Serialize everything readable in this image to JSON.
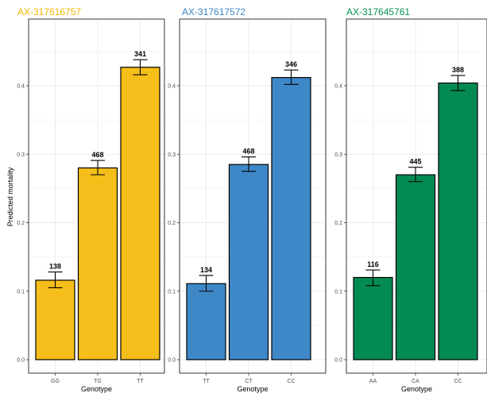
{
  "ylabel": "Predicted mortality",
  "chart_data": [
    {
      "type": "bar",
      "title": "AX-317616757",
      "title_color": "#f5b800",
      "bar_color": "#f5be1a",
      "xlabel": "Genotype",
      "ylabel": "Predicted mortality",
      "ylim": [
        0,
        0.48
      ],
      "yticks": [
        "0.0",
        "0.1",
        "0.2",
        "0.3",
        "0.4"
      ],
      "categories": [
        "GG",
        "TG",
        "TT"
      ],
      "values": [
        0.116,
        0.28,
        0.427
      ],
      "err_low": [
        0.105,
        0.27,
        0.416
      ],
      "err_high": [
        0.128,
        0.291,
        0.438
      ],
      "counts": [
        "138",
        "468",
        "341"
      ],
      "grid": true
    },
    {
      "type": "bar",
      "title": "AX-317617572",
      "title_color": "#3b86c8",
      "bar_color": "#3f88c8",
      "xlabel": "Genotype",
      "ylabel": "",
      "ylim": [
        0,
        0.48
      ],
      "yticks": [
        "0.0",
        "0.1",
        "0.2",
        "0.3",
        "0.4"
      ],
      "categories": [
        "TT",
        "CT",
        "CC"
      ],
      "values": [
        0.111,
        0.285,
        0.412
      ],
      "err_low": [
        0.1,
        0.275,
        0.402
      ],
      "err_high": [
        0.123,
        0.296,
        0.423
      ],
      "counts": [
        "134",
        "468",
        "346"
      ],
      "grid": true
    },
    {
      "type": "bar",
      "title": "AX-317645761",
      "title_color": "#05924f",
      "bar_color": "#048a53",
      "xlabel": "Genotype",
      "ylabel": "",
      "ylim": [
        0,
        0.48
      ],
      "yticks": [
        "0.0",
        "0.1",
        "0.2",
        "0.3",
        "0.4"
      ],
      "categories": [
        "AA",
        "CA",
        "CC"
      ],
      "values": [
        0.12,
        0.27,
        0.404
      ],
      "err_low": [
        0.108,
        0.26,
        0.393
      ],
      "err_high": [
        0.131,
        0.281,
        0.415
      ],
      "counts": [
        "116",
        "445",
        "388"
      ],
      "grid": true
    }
  ]
}
